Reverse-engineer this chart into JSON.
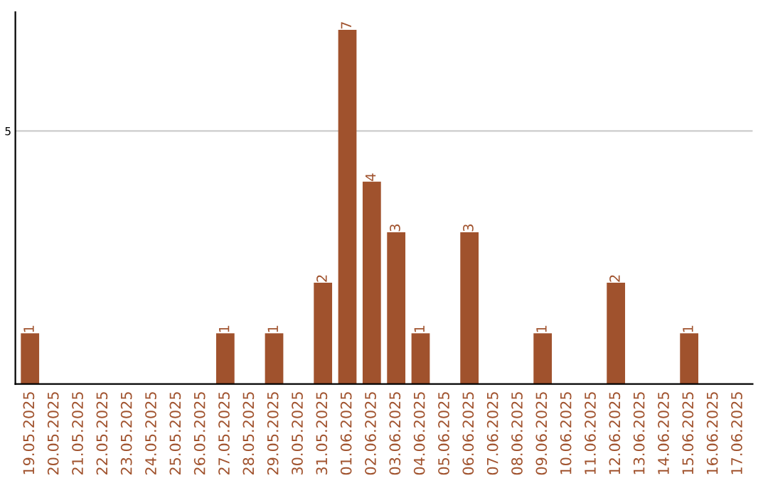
{
  "chart_data": {
    "type": "bar",
    "categories": [
      "19.05.2025",
      "20.05.2025",
      "21.05.2025",
      "22.05.2025",
      "23.05.2025",
      "24.05.2025",
      "25.05.2025",
      "26.05.2025",
      "27.05.2025",
      "28.05.2025",
      "29.05.2025",
      "30.05.2025",
      "31.05.2025",
      "01.06.2025",
      "02.06.2025",
      "03.06.2025",
      "04.06.2025",
      "05.06.2025",
      "06.06.2025",
      "07.06.2025",
      "08.06.2025",
      "09.06.2025",
      "10.06.2025",
      "11.06.2025",
      "12.06.2025",
      "13.06.2025",
      "14.06.2025",
      "15.06.2025",
      "16.06.2025",
      "17.06.2025"
    ],
    "values": [
      1,
      0,
      0,
      0,
      0,
      0,
      0,
      0,
      1,
      0,
      1,
      0,
      2,
      7,
      4,
      3,
      1,
      0,
      3,
      0,
      0,
      1,
      0,
      0,
      2,
      0,
      0,
      1,
      0,
      0
    ],
    "value_labels": [
      "1",
      null,
      null,
      null,
      null,
      null,
      null,
      null,
      "1",
      null,
      "1",
      null,
      "2",
      "7",
      "4",
      "3",
      "1",
      null,
      "3",
      null,
      null,
      "1",
      null,
      null,
      "2",
      null,
      null,
      "1",
      null,
      null
    ],
    "color": "#a0522d",
    "ylim": [
      0,
      7.35
    ],
    "yticks": [
      5
    ],
    "grid": "y",
    "legend": false
  }
}
